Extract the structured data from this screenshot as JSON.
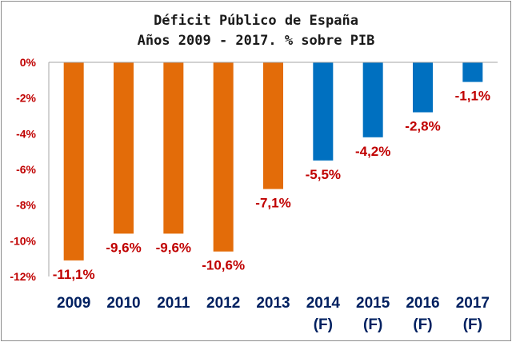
{
  "chart_data": {
    "type": "bar",
    "title": "Déficit Público de España",
    "subtitle": "Años 2009 - 2017. % sobre PIB",
    "categories": [
      "2009",
      "2010",
      "2011",
      "2012",
      "2013",
      "2014",
      "2015",
      "2016",
      "2017"
    ],
    "category_sublabels": [
      "",
      "",
      "",
      "",
      "",
      "(F)",
      "(F)",
      "(F)",
      "(F)"
    ],
    "values": [
      -11.1,
      -9.6,
      -9.6,
      -10.6,
      -7.1,
      -5.5,
      -4.2,
      -2.8,
      -1.1
    ],
    "data_labels": [
      "-11,1%",
      "-9,6%",
      "-9,6%",
      "-10,6%",
      "-7,1%",
      "-5,5%",
      "-4,2%",
      "-2,8%",
      "-1,1%"
    ],
    "ylim": [
      -12,
      0
    ],
    "yticks": [
      "0%",
      "-2%",
      "-4%",
      "-6%",
      "-8%",
      "-10%",
      "-12%"
    ],
    "ytick_values": [
      0,
      -2,
      -4,
      -6,
      -8,
      -10,
      -12
    ],
    "grid": false,
    "xlabel": "",
    "ylabel": "",
    "colors": {
      "actual": "#e36c09",
      "forecast": "#0070c0",
      "data_label": "#c00000",
      "category_label": "#002060"
    }
  }
}
